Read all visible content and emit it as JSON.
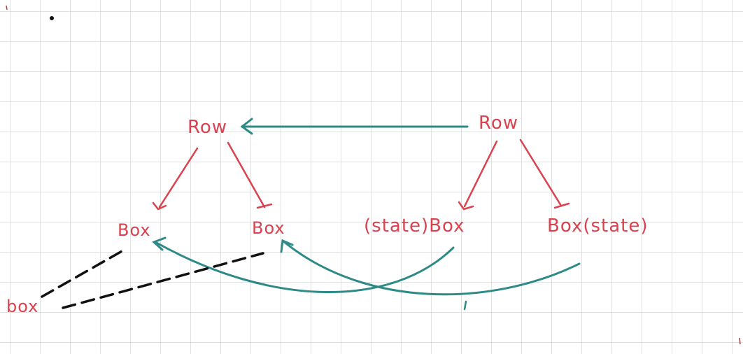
{
  "colors": {
    "background": "#ffffff",
    "grid": "#c9c9c9",
    "red": "#d9424f",
    "teal": "#2e8a86",
    "black": "#111111"
  },
  "nodes": {
    "left_row": "Row",
    "right_row": "Row",
    "left_box_1": "Box",
    "left_box_2": "Box",
    "right_box_1": "(state)Box",
    "right_box_2": "Box(state)",
    "external_box": "box"
  }
}
